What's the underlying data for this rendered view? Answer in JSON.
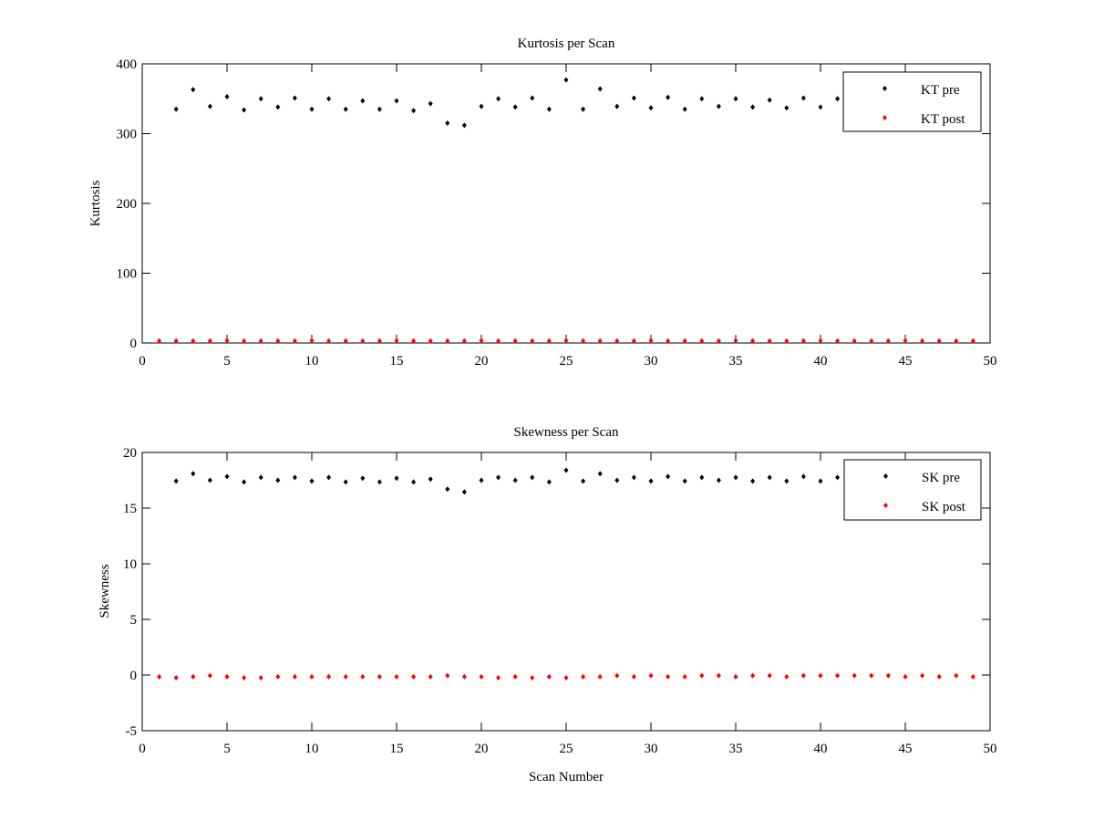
{
  "chart_data": [
    {
      "type": "scatter",
      "title": "Kurtosis per Scan",
      "xlabel": "",
      "ylabel": "Kurtosis",
      "xlim": [
        0,
        50
      ],
      "ylim": [
        0,
        400
      ],
      "xticks": [
        0,
        5,
        10,
        15,
        20,
        25,
        30,
        35,
        40,
        45,
        50
      ],
      "yticks": [
        0,
        100,
        200,
        300,
        400
      ],
      "grid": false,
      "legend_position": "top-right",
      "series": [
        {
          "name": "KT pre",
          "color": "#000000",
          "x": [
            2,
            3,
            4,
            5,
            6,
            7,
            8,
            9,
            10,
            11,
            12,
            13,
            14,
            15,
            16,
            17,
            18,
            19,
            20,
            21,
            22,
            23,
            24,
            25,
            26,
            27,
            28,
            29,
            30,
            31,
            32,
            33,
            34,
            35,
            36,
            37,
            38,
            39,
            40,
            41
          ],
          "y": [
            335,
            363,
            339,
            353,
            334,
            350,
            338,
            351,
            335,
            350,
            335,
            347,
            335,
            347,
            333,
            343,
            315,
            312,
            339,
            350,
            338,
            351,
            335,
            377,
            335,
            364,
            339,
            351,
            337,
            352,
            335,
            350,
            339,
            350,
            338,
            348,
            337,
            351,
            338,
            350
          ]
        },
        {
          "name": "KT post",
          "color": "#ff0000",
          "x": [
            1,
            2,
            3,
            4,
            5,
            6,
            7,
            8,
            9,
            10,
            11,
            12,
            13,
            14,
            15,
            16,
            17,
            18,
            19,
            20,
            21,
            22,
            23,
            24,
            25,
            26,
            27,
            28,
            29,
            30,
            31,
            32,
            33,
            34,
            35,
            36,
            37,
            38,
            39,
            40,
            41,
            42,
            43,
            44,
            45,
            46,
            47,
            48,
            49
          ],
          "y": [
            3,
            3,
            3,
            3,
            3.5,
            3,
            3,
            3,
            3,
            3.5,
            3,
            3,
            3,
            3,
            3.5,
            3,
            3,
            3,
            3,
            3.5,
            3,
            3,
            3,
            3,
            3.5,
            3,
            3,
            3,
            3,
            3.5,
            3,
            3,
            3,
            3,
            3.5,
            3,
            3,
            3,
            3,
            3.5,
            3,
            3,
            3,
            3,
            3.5,
            3,
            3,
            3,
            3
          ]
        }
      ]
    },
    {
      "type": "scatter",
      "title": "Skewness per Scan",
      "xlabel": "Scan Number",
      "ylabel": "Skewness",
      "xlim": [
        0,
        50
      ],
      "ylim": [
        -5,
        20
      ],
      "xticks": [
        0,
        5,
        10,
        15,
        20,
        25,
        30,
        35,
        40,
        45,
        50
      ],
      "yticks": [
        -5,
        0,
        5,
        10,
        15,
        20
      ],
      "grid": false,
      "legend_position": "top-right",
      "series": [
        {
          "name": "SK pre",
          "color": "#000000",
          "x": [
            2,
            3,
            4,
            5,
            6,
            7,
            8,
            9,
            10,
            11,
            12,
            13,
            14,
            15,
            16,
            17,
            18,
            19,
            20,
            21,
            22,
            23,
            24,
            25,
            26,
            27,
            28,
            29,
            30,
            31,
            32,
            33,
            34,
            35,
            36,
            37,
            38,
            39,
            40,
            41
          ],
          "y": [
            17.43,
            18.09,
            17.5,
            17.84,
            17.35,
            17.76,
            17.5,
            17.76,
            17.43,
            17.76,
            17.35,
            17.68,
            17.35,
            17.68,
            17.35,
            17.6,
            16.7,
            16.45,
            17.5,
            17.76,
            17.5,
            17.76,
            17.35,
            18.4,
            17.43,
            18.09,
            17.5,
            17.76,
            17.43,
            17.84,
            17.43,
            17.76,
            17.5,
            17.76,
            17.43,
            17.76,
            17.43,
            17.84,
            17.43,
            17.76
          ]
        },
        {
          "name": "SK post",
          "color": "#ff0000",
          "x": [
            1,
            2,
            3,
            4,
            5,
            6,
            7,
            8,
            9,
            10,
            11,
            12,
            13,
            14,
            15,
            16,
            17,
            18,
            19,
            20,
            21,
            22,
            23,
            24,
            25,
            26,
            27,
            28,
            29,
            30,
            31,
            32,
            33,
            34,
            35,
            36,
            37,
            38,
            39,
            40,
            41,
            42,
            43,
            44,
            45,
            46,
            47,
            48,
            49
          ],
          "y": [
            -0.15,
            -0.25,
            -0.15,
            -0.05,
            -0.15,
            -0.25,
            -0.25,
            -0.15,
            -0.15,
            -0.15,
            -0.15,
            -0.15,
            -0.15,
            -0.15,
            -0.15,
            -0.15,
            -0.15,
            -0.05,
            -0.15,
            -0.15,
            -0.25,
            -0.15,
            -0.25,
            -0.15,
            -0.25,
            -0.15,
            -0.15,
            -0.05,
            -0.15,
            -0.05,
            -0.15,
            -0.15,
            -0.05,
            -0.05,
            -0.15,
            -0.05,
            -0.05,
            -0.15,
            -0.05,
            -0.05,
            -0.05,
            -0.05,
            -0.05,
            -0.05,
            -0.15,
            -0.05,
            -0.15,
            -0.05,
            -0.15
          ]
        }
      ]
    }
  ]
}
